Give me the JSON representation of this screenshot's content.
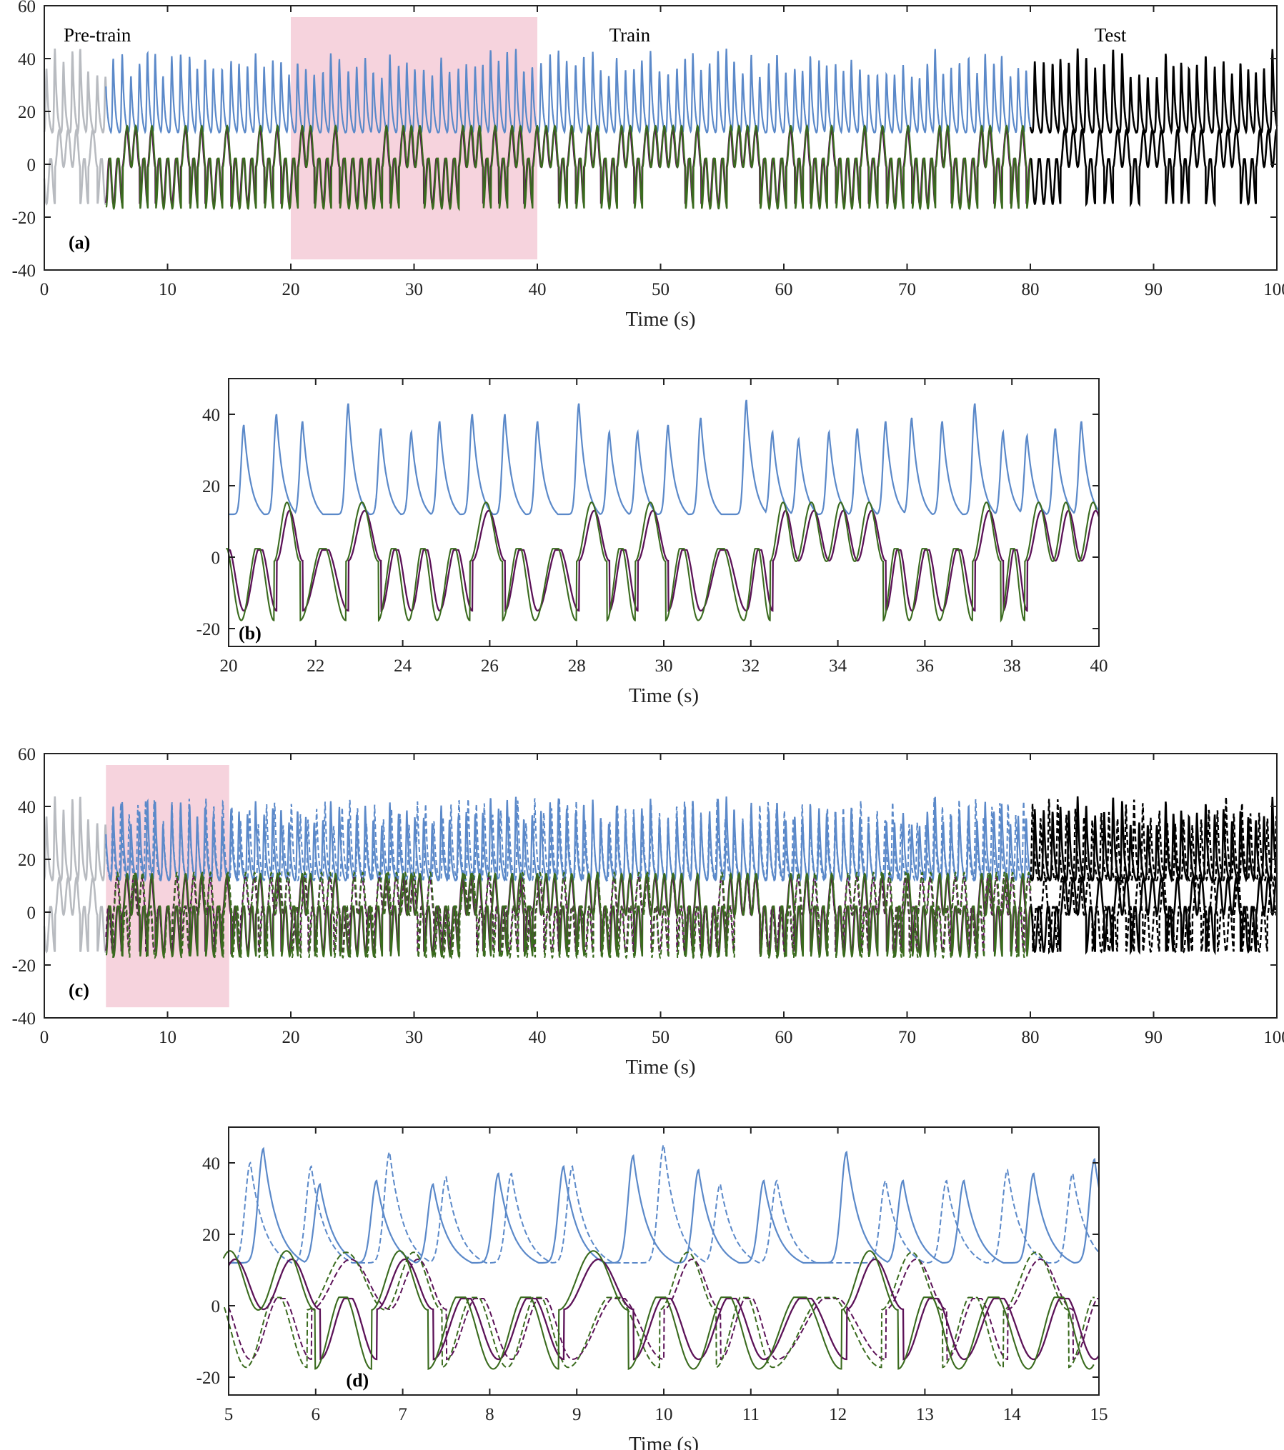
{
  "colors": {
    "x": "#5b89c9",
    "y_true": "#5c1258",
    "y_pred": "#3a6b1e",
    "pretrain": "#b8bbc0",
    "test": "#000000",
    "highlight": "#f3c4d2"
  },
  "chart_data": [
    {
      "id": "a",
      "type": "line",
      "panel_label": "(a)",
      "xlabel": "Time (s)",
      "xlim": [
        0,
        100
      ],
      "ylim": [
        -40,
        60
      ],
      "xticks": [
        "0",
        "10",
        "20",
        "30",
        "40",
        "50",
        "60",
        "70",
        "80",
        "90",
        "100"
      ],
      "yticks": [
        "60",
        "40",
        "20",
        "0",
        "-20",
        "-40"
      ],
      "annotations": [
        "Pre-train",
        "Train",
        "Test"
      ],
      "highlight_range": [
        20,
        40
      ],
      "segments": [
        {
          "name": "Pre-train",
          "x_range": [
            0,
            5
          ]
        },
        {
          "name": "Train",
          "x_range": [
            5,
            80
          ]
        },
        {
          "name": "Test",
          "x_range": [
            80,
            100
          ]
        }
      ],
      "series_y_ranges": {
        "upper": [
          8,
          43
        ],
        "lower": [
          -23,
          16
        ]
      },
      "grid": false
    },
    {
      "id": "b",
      "type": "line",
      "panel_label": "(b)",
      "xlabel": "Time (s)",
      "xlim": [
        20,
        40
      ],
      "ylim": [
        -25,
        50
      ],
      "xticks": [
        "20",
        "22",
        "24",
        "26",
        "28",
        "30",
        "32",
        "34",
        "36",
        "38",
        "40"
      ],
      "yticks": [
        "40",
        "20",
        "0",
        "-20"
      ],
      "upper_peaks": [
        [
          20.35,
          37
        ],
        [
          21.1,
          40
        ],
        [
          21.7,
          38
        ],
        [
          22.75,
          43
        ],
        [
          23.5,
          36
        ],
        [
          24.2,
          35
        ],
        [
          24.85,
          38
        ],
        [
          25.6,
          40
        ],
        [
          26.35,
          40
        ],
        [
          27.1,
          38
        ],
        [
          28.05,
          43
        ],
        [
          28.75,
          35
        ],
        [
          29.4,
          35
        ],
        [
          30.1,
          37
        ],
        [
          30.85,
          39
        ],
        [
          31.9,
          44
        ],
        [
          32.5,
          35
        ],
        [
          33.1,
          33
        ],
        [
          33.8,
          35
        ],
        [
          34.45,
          36
        ],
        [
          35.1,
          38
        ],
        [
          35.7,
          39
        ],
        [
          36.4,
          38
        ],
        [
          37.15,
          43
        ],
        [
          37.8,
          35
        ],
        [
          38.35,
          34
        ],
        [
          39.0,
          36
        ],
        [
          39.6,
          38
        ]
      ],
      "grid": false
    },
    {
      "id": "c",
      "type": "line",
      "panel_label": "(c)",
      "xlabel": "Time (s)",
      "xlim": [
        0,
        100
      ],
      "ylim": [
        -40,
        60
      ],
      "xticks": [
        "0",
        "10",
        "20",
        "30",
        "40",
        "50",
        "60",
        "70",
        "80",
        "90",
        "100"
      ],
      "yticks": [
        "60",
        "40",
        "20",
        "0",
        "-20",
        "-40"
      ],
      "highlight_range": [
        5,
        15
      ],
      "series_y_ranges": {
        "upper": [
          5,
          45
        ],
        "lower": [
          -25,
          20
        ]
      },
      "grid": false
    },
    {
      "id": "d",
      "type": "line",
      "panel_label": "(d)",
      "xlabel": "Time (s)",
      "xlim": [
        5,
        15
      ],
      "ylim": [
        -25,
        50
      ],
      "xticks": [
        "5",
        "6",
        "7",
        "8",
        "9",
        "10",
        "11",
        "12",
        "13",
        "14",
        "15"
      ],
      "yticks": [
        "40",
        "20",
        "0",
        "-20"
      ],
      "upper_peaks_solid": [
        [
          5.4,
          44
        ],
        [
          6.05,
          34
        ],
        [
          6.7,
          35
        ],
        [
          7.35,
          34
        ],
        [
          8.1,
          37
        ],
        [
          8.85,
          39
        ],
        [
          9.65,
          42
        ],
        [
          10.4,
          38
        ],
        [
          11.15,
          35
        ],
        [
          12.1,
          43
        ],
        [
          12.75,
          35
        ],
        [
          13.45,
          35
        ],
        [
          14.25,
          37
        ],
        [
          14.95,
          41
        ]
      ],
      "upper_peaks_dashed": [
        [
          5.25,
          40
        ],
        [
          5.95,
          39
        ],
        [
          6.85,
          43
        ],
        [
          7.5,
          36
        ],
        [
          8.25,
          37
        ],
        [
          8.95,
          39
        ],
        [
          10.0,
          45
        ],
        [
          10.65,
          34
        ],
        [
          11.3,
          35
        ],
        [
          12.55,
          35
        ],
        [
          13.25,
          35
        ],
        [
          13.95,
          38
        ],
        [
          14.7,
          37
        ]
      ],
      "grid": false
    }
  ]
}
